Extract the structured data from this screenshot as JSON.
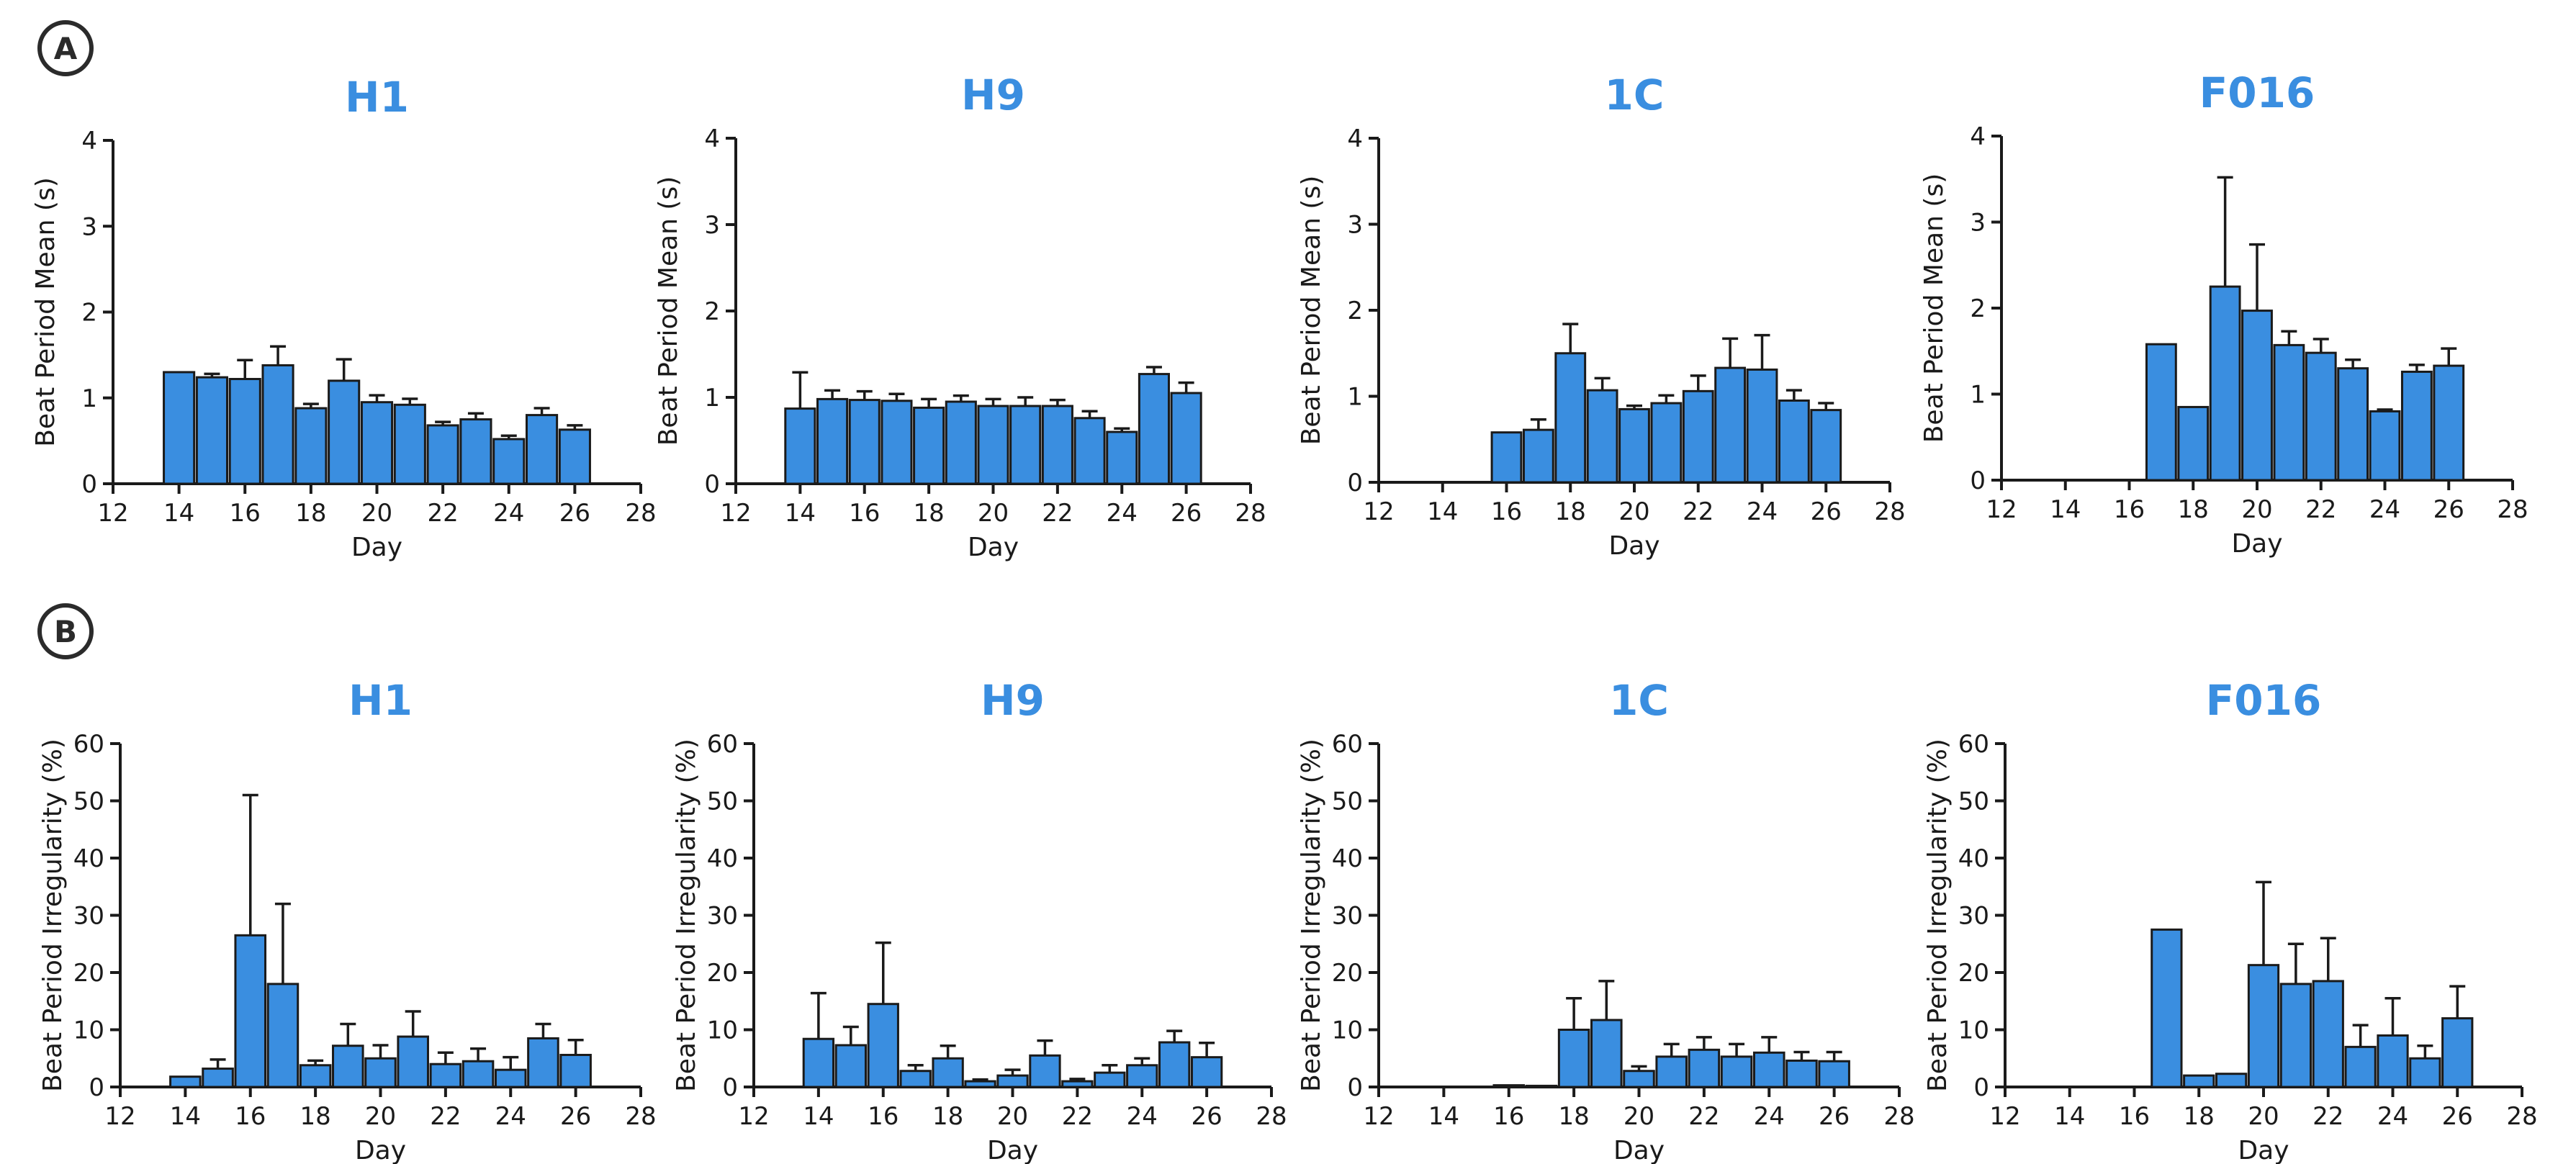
{
  "panels": [
    {
      "label": "A"
    },
    {
      "label": "B"
    }
  ],
  "colors": {
    "bar_fill": "#3a8ee0",
    "bar_stroke": "#1a1a1a",
    "title": "#3a8ee0",
    "axis": "#1a1a1a",
    "text": "#1a1a1a"
  },
  "chart_data": [
    {
      "panel": "A",
      "type": "bar",
      "title": "H1",
      "xlabel": "Day",
      "ylabel": "Beat Period Mean (s)",
      "xlim": [
        12,
        28
      ],
      "xticks": [
        12,
        14,
        16,
        18,
        20,
        22,
        24,
        26,
        28
      ],
      "ylim": [
        0,
        4
      ],
      "yticks": [
        0,
        1,
        2,
        3,
        4
      ],
      "x": [
        14,
        15,
        16,
        17,
        18,
        19,
        20,
        21,
        22,
        23,
        24,
        25,
        26
      ],
      "values": [
        1.3,
        1.24,
        1.22,
        1.38,
        0.88,
        1.2,
        0.95,
        0.92,
        0.68,
        0.75,
        0.52,
        0.8,
        0.63
      ],
      "error": [
        0.0,
        0.04,
        0.22,
        0.22,
        0.05,
        0.25,
        0.08,
        0.07,
        0.04,
        0.07,
        0.04,
        0.08,
        0.05
      ]
    },
    {
      "panel": "A",
      "type": "bar",
      "title": "H9",
      "xlabel": "Day",
      "ylabel": "Beat Period Mean (s)",
      "xlim": [
        12,
        28
      ],
      "xticks": [
        12,
        14,
        16,
        18,
        20,
        22,
        24,
        26,
        28
      ],
      "ylim": [
        0,
        4
      ],
      "yticks": [
        0,
        1,
        2,
        3,
        4
      ],
      "x": [
        14,
        15,
        16,
        17,
        18,
        19,
        20,
        21,
        22,
        23,
        24,
        25,
        26
      ],
      "values": [
        0.87,
        0.98,
        0.97,
        0.96,
        0.88,
        0.95,
        0.9,
        0.9,
        0.9,
        0.76,
        0.6,
        1.27,
        1.05
      ],
      "error": [
        0.42,
        0.1,
        0.1,
        0.08,
        0.1,
        0.07,
        0.08,
        0.1,
        0.07,
        0.08,
        0.04,
        0.08,
        0.12
      ]
    },
    {
      "panel": "A",
      "type": "bar",
      "title": "1C",
      "xlabel": "Day",
      "ylabel": "Beat Period Mean (s)",
      "xlim": [
        12,
        28
      ],
      "xticks": [
        12,
        14,
        16,
        18,
        20,
        22,
        24,
        26,
        28
      ],
      "ylim": [
        0,
        4
      ],
      "yticks": [
        0,
        1,
        2,
        3,
        4
      ],
      "x": [
        16,
        17,
        18,
        19,
        20,
        21,
        22,
        23,
        24,
        25,
        26
      ],
      "values": [
        0.58,
        0.61,
        1.5,
        1.07,
        0.85,
        0.92,
        1.06,
        1.33,
        1.31,
        0.95,
        0.84
      ],
      "error": [
        0.0,
        0.12,
        0.34,
        0.14,
        0.04,
        0.09,
        0.18,
        0.34,
        0.4,
        0.12,
        0.08
      ]
    },
    {
      "panel": "A",
      "type": "bar",
      "title": "F016",
      "xlabel": "Day",
      "ylabel": "Beat Period Mean (s)",
      "xlim": [
        12,
        28
      ],
      "xticks": [
        12,
        14,
        16,
        18,
        20,
        22,
        24,
        26,
        28
      ],
      "ylim": [
        0,
        4
      ],
      "yticks": [
        0,
        1,
        2,
        3,
        4
      ],
      "x": [
        17,
        18,
        19,
        20,
        21,
        22,
        23,
        24,
        25,
        26
      ],
      "values": [
        1.58,
        0.85,
        2.25,
        1.97,
        1.57,
        1.48,
        1.3,
        0.8,
        1.26,
        1.33
      ],
      "error": [
        0.0,
        0.0,
        1.27,
        0.77,
        0.16,
        0.16,
        0.1,
        0.02,
        0.08,
        0.2
      ]
    },
    {
      "panel": "B",
      "type": "bar",
      "title": "H1",
      "xlabel": "Day",
      "ylabel": "Beat Period Irregularity (%)",
      "xlim": [
        12,
        28
      ],
      "xticks": [
        12,
        14,
        16,
        18,
        20,
        22,
        24,
        26,
        28
      ],
      "ylim": [
        0,
        60
      ],
      "yticks": [
        0,
        10,
        20,
        30,
        40,
        50,
        60
      ],
      "x": [
        14,
        15,
        16,
        17,
        18,
        19,
        20,
        21,
        22,
        23,
        24,
        25,
        26
      ],
      "values": [
        1.8,
        3.2,
        26.5,
        18.0,
        3.8,
        7.2,
        5.0,
        8.8,
        4.0,
        4.5,
        3.0,
        8.5,
        5.6
      ],
      "error": [
        0.0,
        1.6,
        24.5,
        14.0,
        0.8,
        3.8,
        2.3,
        4.4,
        2.0,
        2.2,
        2.2,
        2.5,
        2.6
      ]
    },
    {
      "panel": "B",
      "type": "bar",
      "title": "H9",
      "xlabel": "Day",
      "ylabel": "Beat Period Irregularity (%)",
      "xlim": [
        12,
        28
      ],
      "xticks": [
        12,
        14,
        16,
        18,
        20,
        22,
        24,
        26,
        28
      ],
      "ylim": [
        0,
        60
      ],
      "yticks": [
        0,
        10,
        20,
        30,
        40,
        50,
        60
      ],
      "x": [
        14,
        15,
        16,
        17,
        18,
        19,
        20,
        21,
        22,
        23,
        24,
        25,
        26
      ],
      "values": [
        8.4,
        7.3,
        14.5,
        2.8,
        5.0,
        1.0,
        2.0,
        5.5,
        1.0,
        2.5,
        3.8,
        7.8,
        5.2
      ],
      "error": [
        8.0,
        3.2,
        10.7,
        1.0,
        2.2,
        0.3,
        1.0,
        2.6,
        0.4,
        1.3,
        1.2,
        2.0,
        2.5
      ]
    },
    {
      "panel": "B",
      "type": "bar",
      "title": "1C",
      "xlabel": "Day",
      "ylabel": "Beat Period Irregularity (%)",
      "xlim": [
        12,
        28
      ],
      "xticks": [
        12,
        14,
        16,
        18,
        20,
        22,
        24,
        26,
        28
      ],
      "ylim": [
        0,
        60
      ],
      "yticks": [
        0,
        10,
        20,
        30,
        40,
        50,
        60
      ],
      "x": [
        16,
        17,
        18,
        19,
        20,
        21,
        22,
        23,
        24,
        25,
        26
      ],
      "values": [
        0.3,
        0.2,
        10.0,
        11.7,
        2.8,
        5.3,
        6.5,
        5.3,
        6.0,
        4.6,
        4.5
      ],
      "error": [
        0.0,
        0.0,
        5.5,
        6.8,
        0.8,
        2.2,
        2.2,
        2.2,
        2.7,
        1.5,
        1.6
      ]
    },
    {
      "panel": "B",
      "type": "bar",
      "title": "F016",
      "xlabel": "Day",
      "ylabel": "Beat Period Irregularity (%)",
      "xlim": [
        12,
        28
      ],
      "xticks": [
        12,
        14,
        16,
        18,
        20,
        22,
        24,
        26,
        28
      ],
      "ylim": [
        0,
        60
      ],
      "yticks": [
        0,
        10,
        20,
        30,
        40,
        50,
        60
      ],
      "x": [
        17,
        18,
        19,
        20,
        21,
        22,
        23,
        24,
        25,
        26
      ],
      "values": [
        27.5,
        2.0,
        2.3,
        21.3,
        18.0,
        18.5,
        7.0,
        9.0,
        5.0,
        12.0
      ],
      "error": [
        0.0,
        0.0,
        0.0,
        14.5,
        7.0,
        7.5,
        3.8,
        6.5,
        2.2,
        5.6
      ]
    }
  ]
}
